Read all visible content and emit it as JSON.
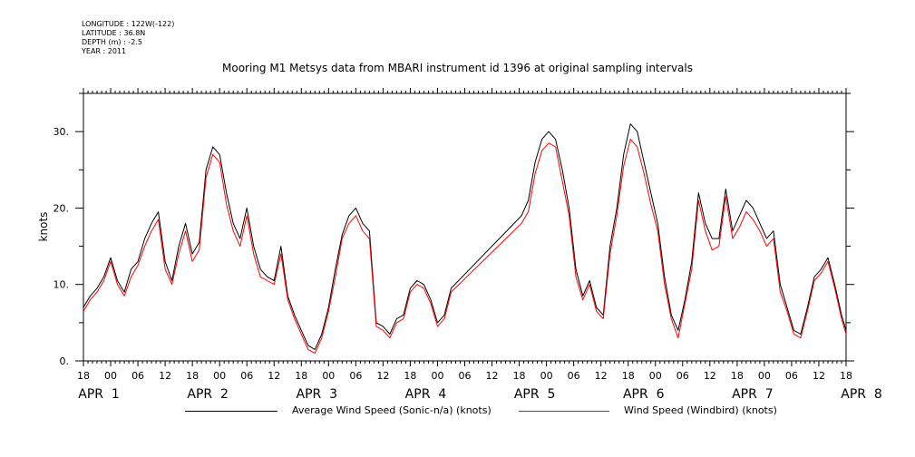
{
  "meta": {
    "longitude": "LONGITUDE : 122W(-122)",
    "latitude": "LATITUDE : 36.8N",
    "depth": "DEPTH (m) : -2.5",
    "year": "YEAR : 2011"
  },
  "chart_data": {
    "type": "line",
    "title": "Mooring M1 Metsys data from MBARI instrument id 1396 at original sampling intervals",
    "ylabel": "knots",
    "xlabel": "",
    "ylim": [
      0,
      35
    ],
    "xlim_hours": [
      18,
      186
    ],
    "y_ticks": [
      0,
      10,
      20,
      30
    ],
    "y_tick_labels": [
      "0.",
      "10.",
      "20.",
      "30."
    ],
    "x_hour_ticks": [
      "18",
      "00",
      "06",
      "12",
      "18",
      "00",
      "06",
      "12",
      "18",
      "00",
      "06",
      "12",
      "18",
      "00",
      "06",
      "12",
      "18",
      "00",
      "06",
      "12",
      "18",
      "00",
      "06",
      "12",
      "18",
      "00",
      "06",
      "12",
      "18"
    ],
    "date_labels": [
      "APR  1",
      "APR  2",
      "APR  3",
      "APR  4",
      "APR  5",
      "APR  6",
      "APR  7",
      "APR  8"
    ],
    "grid": false,
    "legend_position": "bottom",
    "series": [
      {
        "name": "Average Wind Speed (Sonic-n/a) (knots)",
        "color": "#000000",
        "x": [
          18,
          19.5,
          21,
          22.5,
          24,
          25.5,
          27,
          28.5,
          30,
          31.5,
          33,
          34.5,
          36,
          37.5,
          39,
          40.5,
          42,
          43.5,
          45,
          46.5,
          48,
          49.5,
          51,
          52.5,
          54,
          55.5,
          57,
          58.5,
          60,
          61.5,
          63,
          64.5,
          66,
          67.5,
          69,
          70.5,
          72,
          73.5,
          75,
          76.5,
          78,
          79.5,
          81,
          82.5,
          84,
          85.5,
          87,
          88.5,
          90,
          91.5,
          93,
          94.5,
          96,
          97.5,
          99,
          114.5,
          116,
          117.5,
          119,
          120.5,
          122,
          123.5,
          125,
          126.5,
          128,
          129.5,
          131,
          132.5,
          134,
          135.5,
          137,
          138.5,
          140,
          141.5,
          143,
          144.5,
          146,
          147.5,
          149,
          150.5,
          152,
          153.5,
          155,
          156.5,
          158,
          159.5,
          161,
          162.5,
          164,
          165.5,
          167,
          168.5,
          170,
          171.5,
          173,
          174.5,
          176,
          177.5,
          179,
          180.5,
          182,
          183.5,
          185,
          186
        ],
        "values": [
          7.0,
          8.5,
          9.5,
          11.0,
          13.5,
          10.5,
          9.0,
          12.0,
          13.0,
          16.0,
          18.0,
          19.5,
          13.0,
          10.5,
          15.0,
          18.0,
          14.0,
          15.5,
          25.0,
          28.0,
          27.0,
          22.0,
          18.0,
          16.0,
          20.0,
          15.0,
          12.0,
          11.0,
          10.5,
          15.0,
          8.5,
          6.0,
          4.0,
          2.0,
          1.5,
          3.5,
          7.0,
          12.0,
          16.5,
          19.0,
          20.0,
          18.0,
          17.0,
          5.0,
          4.5,
          3.5,
          5.5,
          6.0,
          9.5,
          10.5,
          10.0,
          8.0,
          5.0,
          6.0,
          9.5,
          19.0,
          21.0,
          26.0,
          29.0,
          30.0,
          29.0,
          25.0,
          20.0,
          12.0,
          8.5,
          10.5,
          7.0,
          6.0,
          15.0,
          20.0,
          27.0,
          31.0,
          30.0,
          26.0,
          22.0,
          18.0,
          11.0,
          6.0,
          4.0,
          8.0,
          13.0,
          22.0,
          18.0,
          16.0,
          16.0,
          22.5,
          17.0,
          19.0,
          21.0,
          20.0,
          18.0,
          16.0,
          17.0,
          10.0,
          7.0,
          4.0,
          3.5,
          7.0,
          11.0,
          12.0,
          13.5,
          10.0,
          6.0,
          4.0
        ],
        "y_offset_note": ""
      },
      {
        "name": "Wind Speed (Windbird) (knots)",
        "color": "#ff0000",
        "x": [
          18,
          19.5,
          21,
          22.5,
          24,
          25.5,
          27,
          28.5,
          30,
          31.5,
          33,
          34.5,
          36,
          37.5,
          39,
          40.5,
          42,
          43.5,
          45,
          46.5,
          48,
          49.5,
          51,
          52.5,
          54,
          55.5,
          57,
          58.5,
          60,
          61.5,
          63,
          64.5,
          66,
          67.5,
          69,
          70.5,
          72,
          73.5,
          75,
          76.5,
          78,
          79.5,
          81,
          82.5,
          84,
          85.5,
          87,
          88.5,
          90,
          91.5,
          93,
          94.5,
          96,
          97.5,
          99,
          114.5,
          116,
          117.5,
          119,
          120.5,
          122,
          123.5,
          125,
          126.5,
          128,
          129.5,
          131,
          132.5,
          134,
          135.5,
          137,
          138.5,
          140,
          141.5,
          143,
          144.5,
          146,
          147.5,
          149,
          150.5,
          152,
          153.5,
          155,
          156.5,
          158,
          159.5,
          161,
          162.5,
          164,
          165.5,
          167,
          168.5,
          170,
          171.5,
          173,
          174.5,
          176,
          177.5,
          179,
          180.5,
          182,
          183.5,
          185,
          186
        ],
        "values": [
          6.5,
          8.0,
          9.0,
          10.5,
          13.0,
          10.0,
          8.5,
          11.0,
          12.5,
          15.0,
          17.0,
          18.5,
          12.0,
          10.0,
          14.0,
          17.0,
          13.0,
          14.5,
          24.0,
          27.0,
          26.0,
          20.5,
          17.0,
          15.0,
          19.0,
          14.0,
          11.0,
          10.5,
          10.0,
          14.0,
          8.0,
          5.5,
          3.5,
          1.5,
          1.0,
          3.0,
          6.5,
          11.0,
          16.0,
          18.0,
          19.0,
          17.0,
          16.0,
          4.5,
          4.0,
          3.0,
          5.0,
          5.5,
          9.0,
          10.0,
          9.5,
          7.5,
          4.5,
          5.5,
          9.0,
          18.0,
          19.5,
          24.5,
          27.5,
          28.5,
          28.0,
          23.5,
          19.0,
          11.0,
          8.0,
          10.0,
          6.5,
          5.5,
          14.0,
          19.0,
          25.5,
          29.0,
          28.0,
          24.5,
          20.5,
          17.0,
          10.0,
          5.5,
          3.0,
          7.5,
          12.0,
          21.0,
          17.0,
          14.5,
          15.0,
          21.5,
          16.0,
          17.5,
          19.5,
          18.5,
          17.0,
          15.0,
          16.0,
          9.0,
          6.5,
          3.5,
          3.0,
          6.5,
          10.5,
          11.5,
          13.0,
          9.5,
          5.5,
          3.5
        ]
      }
    ]
  }
}
